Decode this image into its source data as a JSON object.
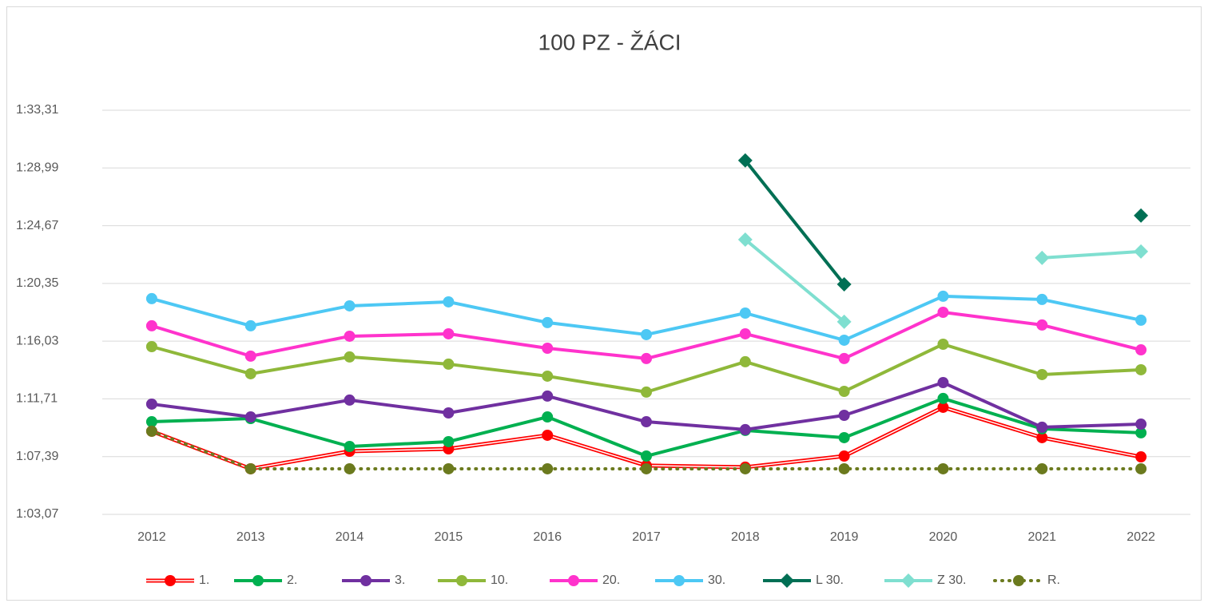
{
  "chart_data": {
    "type": "line",
    "title": "100 PZ - ŽÁCI",
    "categories": [
      "2012",
      "2013",
      "2014",
      "2015",
      "2016",
      "2017",
      "2018",
      "2019",
      "2020",
      "2021",
      "2022"
    ],
    "ylim": [
      63.07,
      93.31
    ],
    "yticks": [
      {
        "value": 63.07,
        "label": "1:03,07"
      },
      {
        "value": 67.39,
        "label": "1:07,39"
      },
      {
        "value": 71.71,
        "label": "1:11,71"
      },
      {
        "value": 76.03,
        "label": "1:16,03"
      },
      {
        "value": 80.35,
        "label": "1:20,35"
      },
      {
        "value": 84.67,
        "label": "1:24,67"
      },
      {
        "value": 88.99,
        "label": "1:28,99"
      },
      {
        "value": 93.31,
        "label": "1:33,31"
      }
    ],
    "grid": true,
    "legend": "bottom",
    "series": [
      {
        "name": "1.",
        "color": "#ff0000",
        "style": "double",
        "marker": "circle",
        "values": [
          69.29,
          66.48,
          67.79,
          67.97,
          68.99,
          66.72,
          66.6,
          67.43,
          71.08,
          68.81,
          67.37
        ]
      },
      {
        "name": "2.",
        "color": "#00b050",
        "style": "solid",
        "marker": "circle",
        "values": [
          70.0,
          70.24,
          68.15,
          68.51,
          70.36,
          67.43,
          69.35,
          68.81,
          71.74,
          69.47,
          69.17
        ]
      },
      {
        "name": "3.",
        "color": "#7030a0",
        "style": "solid",
        "marker": "circle",
        "values": [
          71.32,
          70.36,
          71.62,
          70.66,
          71.92,
          70.0,
          69.41,
          70.48,
          72.93,
          69.59,
          69.82
        ]
      },
      {
        "name": "10.",
        "color": "#8fb83a",
        "style": "solid",
        "marker": "circle",
        "values": [
          75.62,
          73.59,
          74.85,
          74.31,
          73.41,
          72.22,
          74.49,
          72.27,
          75.8,
          73.53,
          73.89
        ]
      },
      {
        "name": "20.",
        "color": "#ff33cc",
        "style": "solid",
        "marker": "circle",
        "values": [
          77.18,
          74.91,
          76.4,
          76.58,
          75.5,
          74.73,
          76.58,
          74.73,
          78.19,
          77.24,
          75.38
        ]
      },
      {
        "name": "30.",
        "color": "#4dc8f4",
        "style": "solid",
        "marker": "circle",
        "values": [
          79.21,
          77.18,
          78.67,
          78.97,
          77.42,
          76.52,
          78.13,
          76.1,
          79.39,
          79.15,
          77.6
        ]
      },
      {
        "name": "L 30.",
        "color": "#006f54",
        "style": "solid",
        "marker": "diamond",
        "values": [
          null,
          null,
          null,
          null,
          null,
          null,
          89.55,
          80.28,
          null,
          null,
          85.43
        ]
      },
      {
        "name": "Z 30.",
        "color": "#7fdfd0",
        "style": "solid",
        "marker": "diamond",
        "values": [
          null,
          null,
          null,
          null,
          null,
          null,
          83.63,
          77.48,
          null,
          82.26,
          82.74
        ]
      },
      {
        "name": "R.",
        "color": "#6b7a1e",
        "style": "dotted",
        "marker": "circle",
        "values": [
          69.29,
          66.48,
          66.48,
          66.48,
          66.48,
          66.48,
          66.48,
          66.48,
          66.48,
          66.48,
          66.48
        ]
      }
    ]
  }
}
